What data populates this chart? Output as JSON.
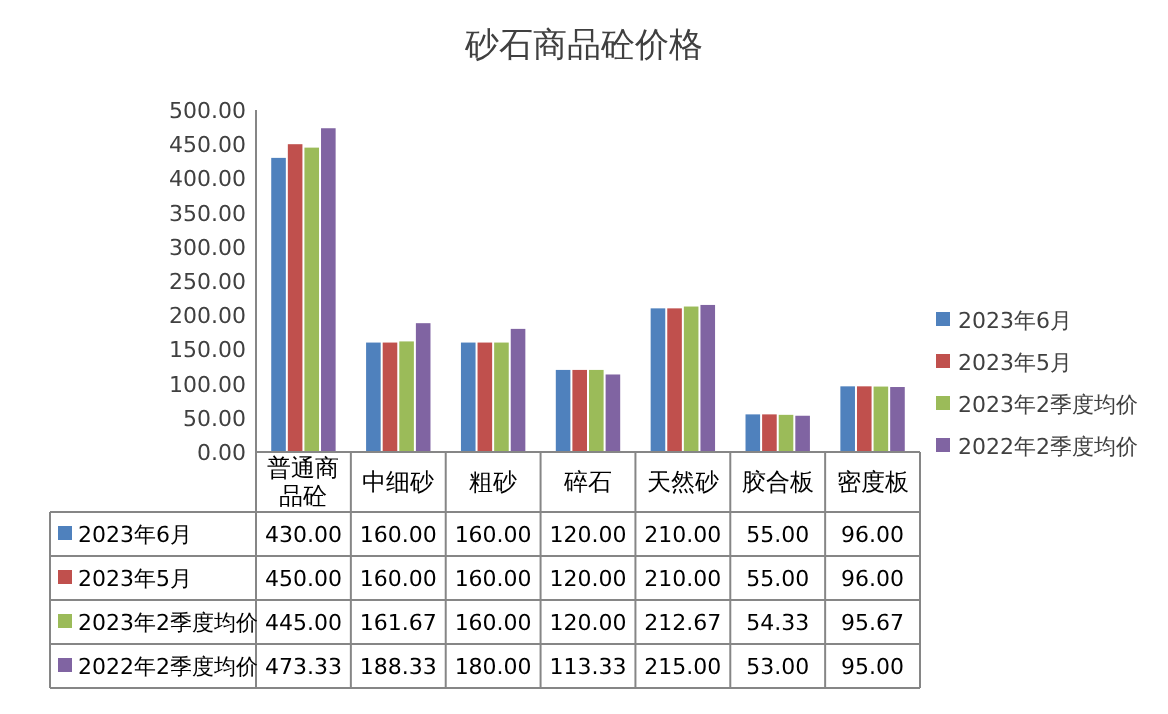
{
  "chart_data": {
    "type": "bar",
    "title": "砂石商品砼价格",
    "categories": [
      "普通商品砼",
      "中细砂",
      "粗砂",
      "碎石",
      "天然砂",
      "胶合板",
      "密度板"
    ],
    "series": [
      {
        "name": "2023年6月",
        "color": "#4f81bd",
        "values": [
          430,
          160,
          160,
          120,
          210,
          55,
          96
        ],
        "value_labels": [
          "430.00",
          "160.00",
          "160.00",
          "120.00",
          "210.00",
          "55.00",
          "96.00"
        ]
      },
      {
        "name": "2023年5月",
        "color": "#c0504d",
        "values": [
          450,
          160,
          160,
          120,
          210,
          55,
          96
        ],
        "value_labels": [
          "450.00",
          "160.00",
          "160.00",
          "120.00",
          "210.00",
          "55.00",
          "96.00"
        ]
      },
      {
        "name": "2023年2季度均价",
        "color": "#9bbb59",
        "values": [
          445,
          161.67,
          160,
          120,
          212.67,
          54.33,
          95.67
        ],
        "value_labels": [
          "445.00",
          "161.67",
          "160.00",
          "120.00",
          "212.67",
          "54.33",
          "95.67"
        ]
      },
      {
        "name": "2022年2季度均价",
        "color": "#8064a2",
        "values": [
          473.33,
          188.33,
          180,
          113.33,
          215,
          53,
          95
        ],
        "value_labels": [
          "473.33",
          "188.33",
          "180.00",
          "113.33",
          "215.00",
          "53.00",
          "95.00"
        ]
      }
    ],
    "ylim": [
      0,
      500
    ],
    "yticks": [
      {
        "value": 0,
        "label": "0.00"
      },
      {
        "value": 50,
        "label": "50.00"
      },
      {
        "value": 100,
        "label": "100.00"
      },
      {
        "value": 150,
        "label": "150.00"
      },
      {
        "value": 200,
        "label": "200.00"
      },
      {
        "value": 250,
        "label": "250.00"
      },
      {
        "value": 300,
        "label": "300.00"
      },
      {
        "value": 350,
        "label": "350.00"
      },
      {
        "value": 400,
        "label": "400.00"
      },
      {
        "value": 450,
        "label": "450.00"
      },
      {
        "value": 500,
        "label": "500.00"
      }
    ],
    "legend": "right",
    "grid": false
  }
}
